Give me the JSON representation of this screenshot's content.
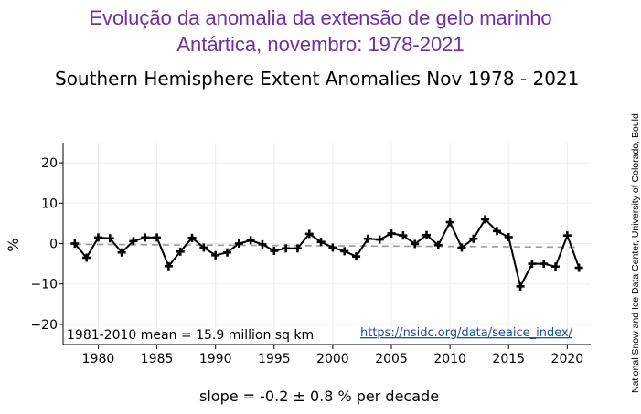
{
  "header": {
    "title_line1": "Evolução da anomalia da extensão de gelo marinho",
    "title_line2": "Antártica, novembro: 1978-2021"
  },
  "footer": {
    "slope_text": "slope = -0.2 ± 0.8 % per decade"
  },
  "credit": "National Snow and Ice Data Center, University of Colorado, Bould",
  "colors": {
    "portuguese_title": "#7030a0",
    "series": "#000000",
    "trend": "#999999",
    "link": "#1f4e9c",
    "grid": "#ececec"
  },
  "chart_data": {
    "type": "line",
    "title": "Southern Hemisphere Extent Anomalies Nov 1978 - 2021",
    "xlabel": "",
    "ylabel": "%",
    "xlim": [
      1977,
      2022
    ],
    "ylim": [
      -25,
      25
    ],
    "xticks": [
      1980,
      1985,
      1990,
      1995,
      2000,
      2005,
      2010,
      2015,
      2020
    ],
    "yticks": [
      -20,
      -10,
      0,
      10,
      20
    ],
    "ytick_labels": [
      "−20",
      "−10",
      "0",
      "10",
      "20"
    ],
    "grid": true,
    "annotation_mean": "1981-2010 mean = 15.9 million sq km",
    "annotation_url": "https://nsidc.org/data/seaice_index/",
    "x": [
      1978,
      1979,
      1980,
      1981,
      1982,
      1983,
      1984,
      1985,
      1986,
      1987,
      1988,
      1989,
      1990,
      1991,
      1992,
      1993,
      1994,
      1995,
      1996,
      1997,
      1998,
      1999,
      2000,
      2001,
      2002,
      2003,
      2004,
      2005,
      2006,
      2007,
      2008,
      2009,
      2010,
      2011,
      2012,
      2013,
      2014,
      2015,
      2016,
      2017,
      2018,
      2019,
      2020,
      2021
    ],
    "series": [
      {
        "values": [
          0,
          -3.5,
          1.5,
          1.3,
          -2.2,
          0.6,
          1.5,
          1.5,
          -5.6,
          -2,
          1.4,
          -1,
          -2.9,
          -2.2,
          0,
          0.8,
          -0.2,
          -1.8,
          -1.2,
          -1.2,
          2.4,
          0.4,
          -1,
          -1.9,
          -3.2,
          1.2,
          1,
          2.5,
          2,
          -0.1,
          2.1,
          -0.4,
          5.3,
          -1,
          1.2,
          6,
          3.1,
          1.6,
          -10.6,
          -5,
          -5,
          -5.7,
          2,
          -6
        ]
      }
    ],
    "trend": {
      "style": "dashed",
      "x": [
        1978,
        2021
      ],
      "y": [
        -0.2,
        -0.9
      ]
    }
  }
}
